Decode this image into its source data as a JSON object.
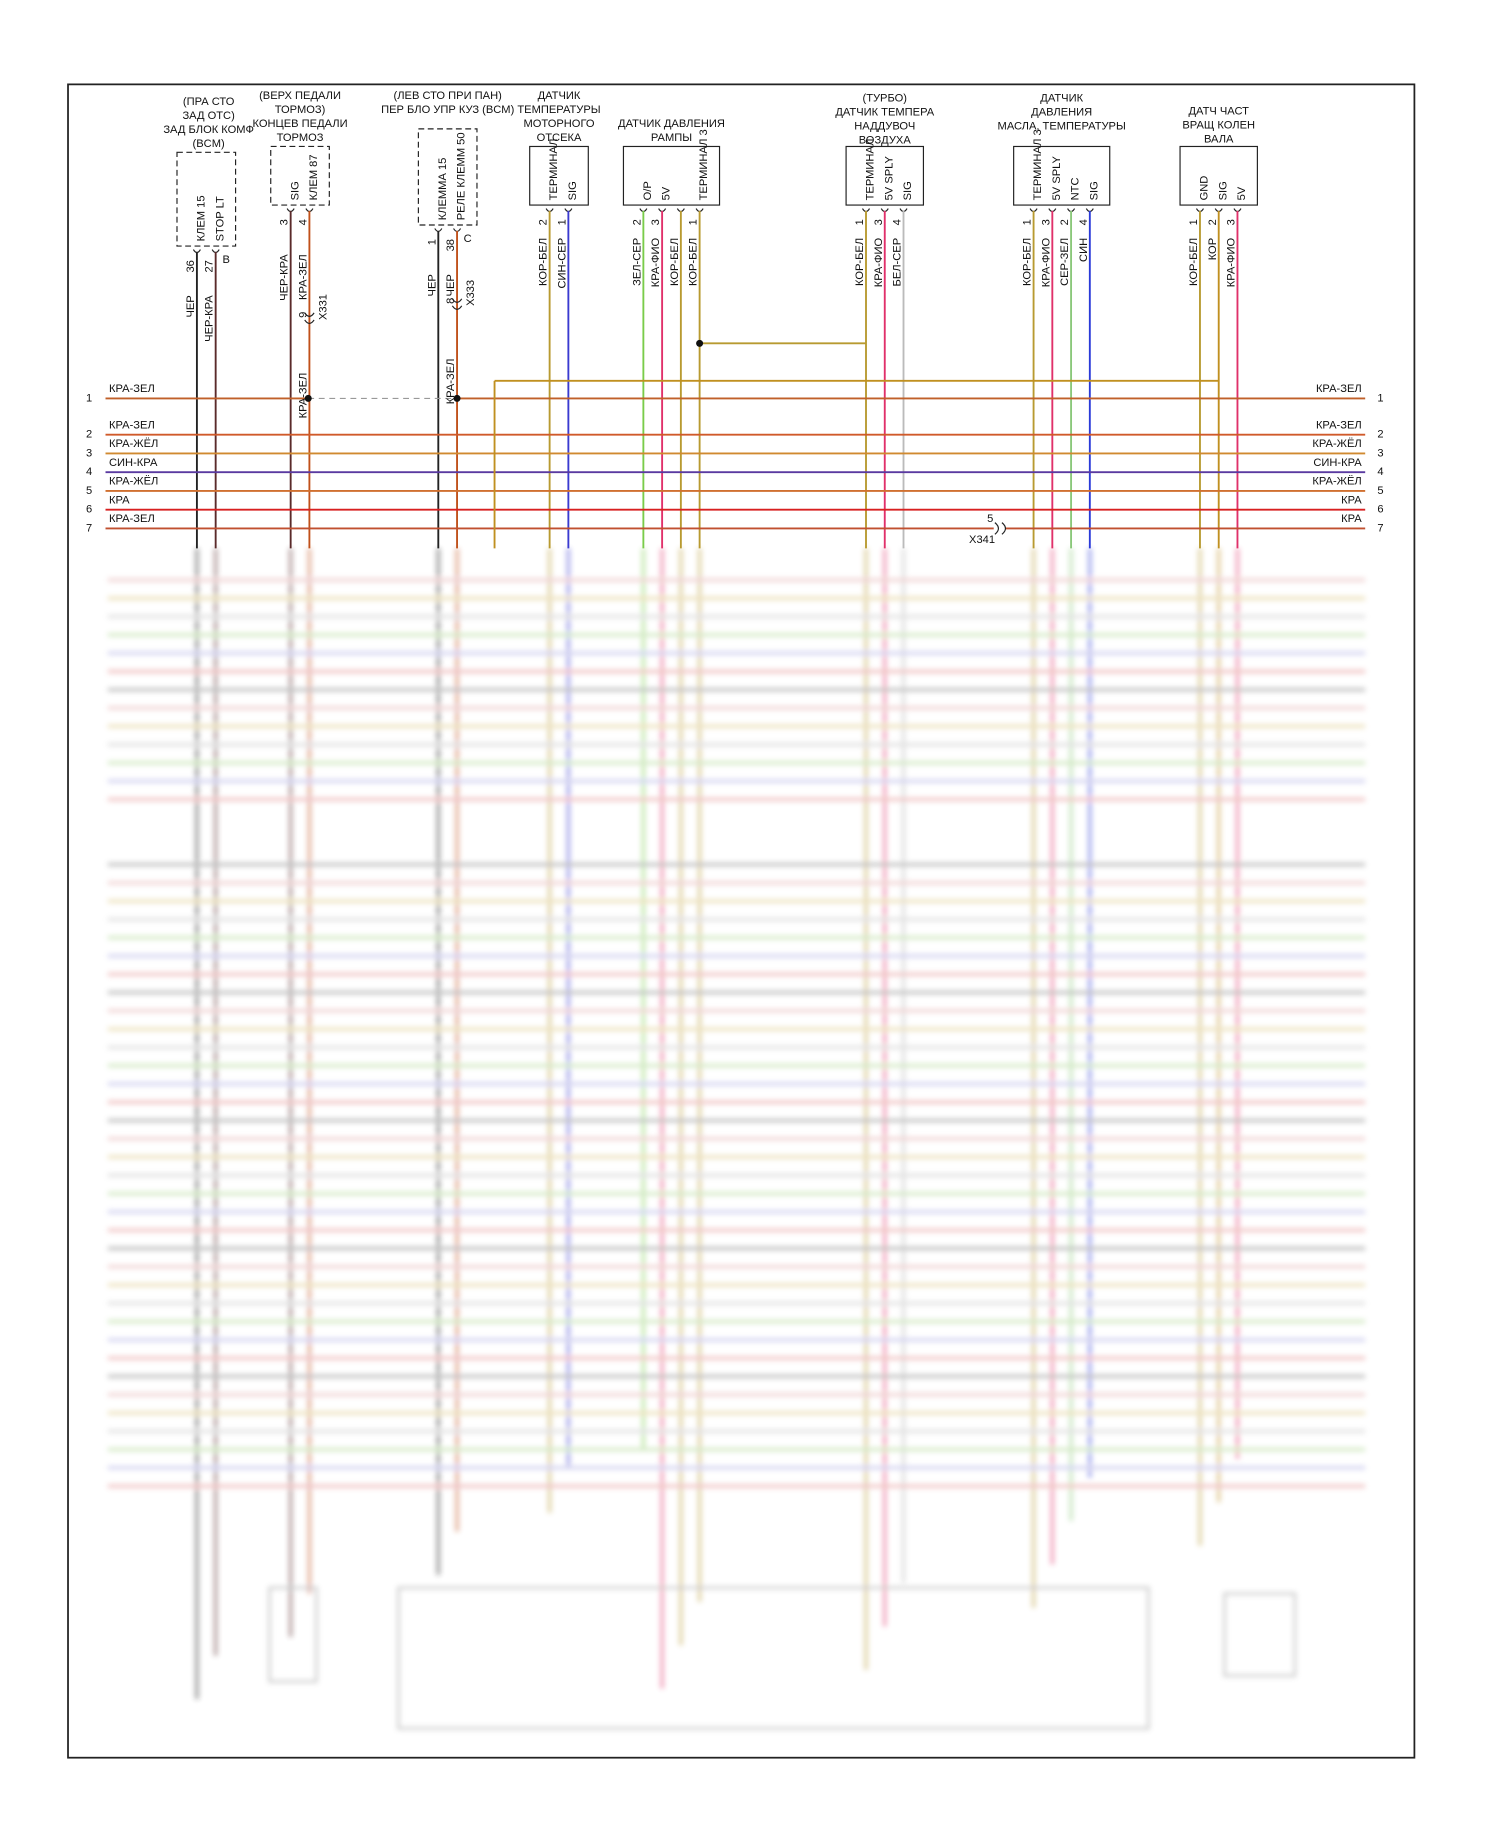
{
  "components": [
    {
      "title": [
        "(ПРА СТО",
        "ЗАД ОТС)",
        "ЗАД БЛОК КОМФ",
        "(BCM)"
      ],
      "terminal": "B",
      "pins": [
        {
          "num": "36",
          "name": "КЛЕМ 15",
          "wire": "ЧЕР",
          "color": "#222222"
        },
        {
          "num": "27",
          "name": "STOP LT",
          "wire": "ЧЕР-КРА",
          "color": "#5a2a2a"
        }
      ]
    },
    {
      "title": [
        "(ВЕРХ ПЕДАЛИ",
        "ТОРМОЗ)",
        "КОНЦЕВ ПЕДАЛИ",
        "ТОРМОЗ"
      ],
      "pins": [
        {
          "num": "3",
          "name": "SIG",
          "wire": "ЧЕР-КРА",
          "color": "#5a2a2a"
        },
        {
          "num": "4",
          "name": "КЛЕМ 87",
          "wire": "КРА-ЗЕЛ",
          "color": "#c0501a"
        }
      ]
    },
    {
      "title": [
        "(ЛЕВ СТО ПРИ ПАН)",
        "ПЕР БЛО УПР КУЗ (BCM)"
      ],
      "terminal": "C",
      "pins": [
        {
          "num": "1",
          "name": "КЛЕММА 15",
          "wire": "ЧЕР",
          "color": "#222222"
        },
        {
          "num": "38",
          "name": "РЕЛЕ КЛЕММ 50",
          "wire": "ЧЕР",
          "color": "#c0501a"
        }
      ]
    },
    {
      "title": [
        "ДАТЧИК",
        "ТЕМПЕРАТУРЫ",
        "МОТОРНОГО",
        "ОТСЕКА"
      ],
      "pins": [
        {
          "num": "2",
          "name": "ТЕРМИНАЛ",
          "wire": "КОР-БЕЛ",
          "color": "#b89a30"
        },
        {
          "num": "1",
          "name": "SIG",
          "wire": "СИН-СЕР",
          "color": "#3a3ad0"
        }
      ]
    },
    {
      "title": [
        "ДАТЧИК ДАВЛЕНИЯ",
        "РАМПЫ"
      ],
      "pins": [
        {
          "num": "2",
          "name": "O/P",
          "wire": "ЗЕЛ-СЕР",
          "color": "#7acc4a"
        },
        {
          "num": "3",
          "name": "5V",
          "wire": "КРА-ФИО",
          "color": "#e0306a"
        },
        {
          "num": null,
          "name": null,
          "wire": "КОР-БЕЛ",
          "color": "#b89a30"
        },
        {
          "num": "1",
          "name": "ТЕРМИНАЛ 3",
          "wire": "КОР-БЕЛ",
          "color": "#b89a30"
        }
      ]
    },
    {
      "title": [
        "(ТУРБО)",
        "ДАТЧИК ТЕМПЕРА",
        "НАДДУВОЧ",
        "ВОЗДУХА"
      ],
      "pins": [
        {
          "num": "1",
          "name": "ТЕРМИНАЛ",
          "wire": "КОР-БЕЛ",
          "color": "#b89a30"
        },
        {
          "num": "3",
          "name": "5V SPLY",
          "wire": "КРА-ФИО",
          "color": "#e0306a"
        },
        {
          "num": "4",
          "name": "SIG",
          "wire": "БЕЛ-СЕР",
          "color": "#bbbbbb"
        }
      ]
    },
    {
      "title": [
        "ДАТЧИК",
        "ДАВЛЕНИЯ",
        "МАСЛА, ТЕМПЕРАТУРЫ"
      ],
      "pins": [
        {
          "num": "1",
          "name": "ТЕРМИНАЛ 3",
          "wire": "КОР-БЕЛ",
          "color": "#b89a30"
        },
        {
          "num": "3",
          "name": "5V SPLY",
          "wire": "КРА-ФИО",
          "color": "#e0306a"
        },
        {
          "num": "2",
          "name": "NTC",
          "wire": "СЕР-ЗЕЛ",
          "color": "#8ac87a"
        },
        {
          "num": "4",
          "name": "SIG",
          "wire": "СИН",
          "color": "#2a3ad8"
        }
      ]
    },
    {
      "title": [
        "ДАТЧ ЧАСТ",
        "ВРАЩ КОЛЕН",
        "ВАЛА"
      ],
      "pins": [
        {
          "num": "1",
          "name": "GND",
          "wire": "КОР-БЕЛ",
          "color": "#b89a30"
        },
        {
          "num": "2",
          "name": "SIG",
          "wire": "КОР",
          "color": "#c09020"
        },
        {
          "num": "3",
          "name": "5V",
          "wire": "КРА-ФИО",
          "color": "#e0306a"
        }
      ]
    }
  ],
  "connectors": [
    {
      "name": "X331",
      "pin": "9",
      "wire": "КРА-ЗЕЛ"
    },
    {
      "name": "X333",
      "pin": "8",
      "wire": "КРА-ЗЕЛ"
    },
    {
      "name": "X341",
      "pin": "5"
    }
  ],
  "bus": [
    {
      "num": "1",
      "left": "КРА-ЗЕЛ",
      "right": "КРА-ЗЕЛ",
      "color": "#c0602a"
    },
    {
      "num": "2",
      "left": "КРА-ЗЕЛ",
      "right": "КРА-ЗЕЛ",
      "color": "#d05a2a"
    },
    {
      "num": "3",
      "left": "КРА-ЖЁЛ",
      "right": "КРА-ЖЁЛ",
      "color": "#d08a30"
    },
    {
      "num": "4",
      "left": "СИН-КРА",
      "right": "СИН-КРА",
      "color": "#5a3aa0"
    },
    {
      "num": "5",
      "left": "КРА-ЖЁЛ",
      "right": "КРА-ЖЁЛ",
      "color": "#d07030"
    },
    {
      "num": "6",
      "left": "КРА",
      "right": "КРА",
      "color": "#d82020"
    },
    {
      "num": "7",
      "left": "КРА-ЗЕЛ",
      "right": "КРА",
      "color": "#c05030"
    }
  ]
}
